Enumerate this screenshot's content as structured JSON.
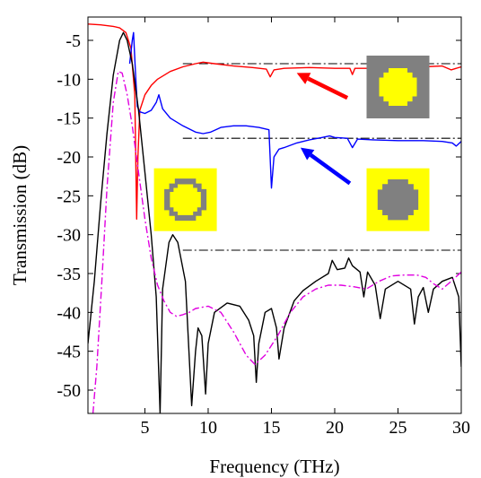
{
  "chart_data": {
    "type": "line",
    "title": "",
    "xlabel": "Frequency (THz)",
    "ylabel": "Transmission (dB)",
    "xlim": [
      0.5,
      30
    ],
    "ylim": [
      -53,
      -2
    ],
    "xticks": [
      5,
      10,
      15,
      20,
      25,
      30
    ],
    "xtick_labels": [
      "5",
      "10",
      "15",
      "20",
      "25",
      "30"
    ],
    "yticks": [
      -5,
      -10,
      -15,
      -20,
      -25,
      -30,
      -35,
      -40,
      -45,
      -50
    ],
    "ytick_labels": [
      "-5",
      "-10",
      "-15",
      "-20",
      "-25",
      "-30",
      "-35",
      "-40",
      "-45",
      "-50"
    ],
    "grid": false,
    "legend": "none",
    "series": [
      {
        "color": "#ff0000",
        "style": "solid",
        "points": [
          [
            0.5,
            -2.9
          ],
          [
            1.5,
            -3.0
          ],
          [
            2.5,
            -3.2
          ],
          [
            3.0,
            -3.4
          ],
          [
            3.5,
            -4.0
          ],
          [
            3.9,
            -6.0
          ],
          [
            4.2,
            -12.0
          ],
          [
            4.35,
            -28.0
          ],
          [
            4.45,
            -20.0
          ],
          [
            4.6,
            -14.0
          ],
          [
            5.0,
            -12.0
          ],
          [
            5.5,
            -10.8
          ],
          [
            6.0,
            -10.0
          ],
          [
            7.0,
            -9.0
          ],
          [
            8.0,
            -8.4
          ],
          [
            9.0,
            -8.0
          ],
          [
            9.6,
            -7.8
          ],
          [
            10.5,
            -8.0
          ],
          [
            12.0,
            -8.3
          ],
          [
            13.5,
            -8.5
          ],
          [
            14.6,
            -8.7
          ],
          [
            14.9,
            -9.7
          ],
          [
            15.2,
            -8.8
          ],
          [
            16.0,
            -8.6
          ],
          [
            18.0,
            -8.5
          ],
          [
            20.0,
            -8.6
          ],
          [
            21.2,
            -8.6
          ],
          [
            21.4,
            -9.4
          ],
          [
            21.6,
            -8.6
          ],
          [
            23.0,
            -8.6
          ],
          [
            25.0,
            -8.5
          ],
          [
            27.0,
            -8.4
          ],
          [
            28.5,
            -8.3
          ],
          [
            29.2,
            -8.8
          ],
          [
            30.0,
            -8.4
          ]
        ]
      },
      {
        "color": "#0000ff",
        "style": "solid",
        "points": [
          [
            3.8,
            -8.0
          ],
          [
            4.0,
            -5.0
          ],
          [
            4.1,
            -4.0
          ],
          [
            4.25,
            -9.0
          ],
          [
            4.4,
            -13.5
          ],
          [
            4.6,
            -14.2
          ],
          [
            5.0,
            -14.4
          ],
          [
            5.5,
            -14.0
          ],
          [
            5.9,
            -13.0
          ],
          [
            6.1,
            -12.0
          ],
          [
            6.4,
            -13.8
          ],
          [
            7.0,
            -15.0
          ],
          [
            8.0,
            -16.0
          ],
          [
            9.0,
            -16.8
          ],
          [
            9.6,
            -17.0
          ],
          [
            10.2,
            -16.8
          ],
          [
            11.0,
            -16.2
          ],
          [
            12.0,
            -16.0
          ],
          [
            13.0,
            -16.0
          ],
          [
            14.0,
            -16.2
          ],
          [
            14.8,
            -16.5
          ],
          [
            15.0,
            -24.0
          ],
          [
            15.2,
            -20.0
          ],
          [
            15.6,
            -19.0
          ],
          [
            16.0,
            -18.8
          ],
          [
            17.0,
            -18.2
          ],
          [
            18.0,
            -17.8
          ],
          [
            19.0,
            -17.5
          ],
          [
            19.6,
            -17.3
          ],
          [
            20.0,
            -17.5
          ],
          [
            21.0,
            -17.6
          ],
          [
            21.4,
            -18.8
          ],
          [
            21.8,
            -17.7
          ],
          [
            23.0,
            -17.8
          ],
          [
            25.0,
            -17.9
          ],
          [
            27.0,
            -17.9
          ],
          [
            28.5,
            -18.0
          ],
          [
            29.3,
            -18.2
          ],
          [
            29.6,
            -18.6
          ],
          [
            30.0,
            -18.0
          ]
        ]
      },
      {
        "color": "#000000",
        "style": "solid",
        "points": [
          [
            0.5,
            -44.0
          ],
          [
            1.0,
            -36.0
          ],
          [
            1.5,
            -26.0
          ],
          [
            2.0,
            -17.0
          ],
          [
            2.5,
            -9.5
          ],
          [
            3.0,
            -5.0
          ],
          [
            3.3,
            -4.0
          ],
          [
            3.6,
            -5.0
          ],
          [
            4.0,
            -8.0
          ],
          [
            4.5,
            -14.0
          ],
          [
            5.0,
            -22.0
          ],
          [
            5.5,
            -30.0
          ],
          [
            5.9,
            -38.0
          ],
          [
            6.2,
            -53.0
          ],
          [
            6.4,
            -37.0
          ],
          [
            6.9,
            -31.0
          ],
          [
            7.2,
            -30.0
          ],
          [
            7.6,
            -31.0
          ],
          [
            8.2,
            -36.0
          ],
          [
            8.7,
            -52.0
          ],
          [
            9.0,
            -45.0
          ],
          [
            9.2,
            -42.0
          ],
          [
            9.5,
            -43.0
          ],
          [
            9.8,
            -50.5
          ],
          [
            10.0,
            -44.0
          ],
          [
            10.5,
            -40.0
          ],
          [
            11.5,
            -38.8
          ],
          [
            12.5,
            -39.2
          ],
          [
            13.2,
            -41.0
          ],
          [
            13.6,
            -43.0
          ],
          [
            13.8,
            -49.0
          ],
          [
            14.0,
            -44.0
          ],
          [
            14.5,
            -40.0
          ],
          [
            15.0,
            -39.5
          ],
          [
            15.4,
            -42.0
          ],
          [
            15.6,
            -46.0
          ],
          [
            16.0,
            -42.0
          ],
          [
            16.8,
            -38.5
          ],
          [
            17.5,
            -37.2
          ],
          [
            18.5,
            -36.0
          ],
          [
            19.5,
            -35.0
          ],
          [
            19.8,
            -33.3
          ],
          [
            20.2,
            -34.5
          ],
          [
            20.8,
            -34.3
          ],
          [
            21.1,
            -33.0
          ],
          [
            21.4,
            -34.0
          ],
          [
            22.0,
            -34.8
          ],
          [
            22.3,
            -38.0
          ],
          [
            22.6,
            -34.8
          ],
          [
            23.2,
            -36.5
          ],
          [
            23.6,
            -40.8
          ],
          [
            24.0,
            -37.0
          ],
          [
            25.0,
            -36.0
          ],
          [
            26.0,
            -37.0
          ],
          [
            26.3,
            -41.5
          ],
          [
            26.6,
            -38.0
          ],
          [
            27.0,
            -36.8
          ],
          [
            27.4,
            -40.0
          ],
          [
            27.8,
            -37.0
          ],
          [
            28.5,
            -36.0
          ],
          [
            29.3,
            -35.5
          ],
          [
            29.8,
            -38.0
          ],
          [
            30.0,
            -47.0
          ]
        ]
      },
      {
        "color": "#e000e0",
        "style": "dashdot",
        "points": [
          [
            0.9,
            -53.0
          ],
          [
            1.2,
            -47.0
          ],
          [
            1.6,
            -36.0
          ],
          [
            2.0,
            -24.0
          ],
          [
            2.5,
            -13.0
          ],
          [
            2.9,
            -9.0
          ],
          [
            3.2,
            -9.2
          ],
          [
            3.6,
            -12.0
          ],
          [
            4.0,
            -16.0
          ],
          [
            4.5,
            -22.0
          ],
          [
            5.0,
            -28.0
          ],
          [
            5.5,
            -33.0
          ],
          [
            6.0,
            -36.5
          ],
          [
            6.5,
            -38.5
          ],
          [
            7.0,
            -40.0
          ],
          [
            7.5,
            -40.5
          ],
          [
            8.0,
            -40.3
          ],
          [
            8.5,
            -40.0
          ],
          [
            9.0,
            -39.5
          ],
          [
            10.0,
            -39.2
          ],
          [
            11.0,
            -40.0
          ],
          [
            12.0,
            -42.5
          ],
          [
            13.0,
            -45.5
          ],
          [
            13.7,
            -46.7
          ],
          [
            14.5,
            -45.5
          ],
          [
            15.5,
            -43.0
          ],
          [
            16.5,
            -40.0
          ],
          [
            17.5,
            -38.0
          ],
          [
            18.5,
            -37.0
          ],
          [
            19.5,
            -36.5
          ],
          [
            20.5,
            -36.5
          ],
          [
            21.5,
            -36.7
          ],
          [
            22.5,
            -37.0
          ],
          [
            23.5,
            -36.0
          ],
          [
            24.5,
            -35.3
          ],
          [
            25.5,
            -35.2
          ],
          [
            26.5,
            -35.2
          ],
          [
            27.2,
            -35.5
          ],
          [
            27.8,
            -36.3
          ],
          [
            28.5,
            -37.0
          ],
          [
            29.2,
            -36.0
          ],
          [
            30.0,
            -34.8
          ]
        ]
      }
    ],
    "reference_lines": [
      {
        "y": -8.0,
        "x_start": 8.0,
        "x_end": 30.0
      },
      {
        "y": -17.6,
        "x_start": 8.0,
        "x_end": 30.0
      },
      {
        "y": -32.0,
        "x_start": 8.0,
        "x_end": 30.0
      }
    ],
    "annotations": [
      {
        "kind": "arrow",
        "color": "#ff0000",
        "from": [
          21.0,
          -12.4
        ],
        "to": [
          17.0,
          -9.2
        ]
      },
      {
        "kind": "arrow",
        "color": "#0000ff",
        "from": [
          21.2,
          -23.4
        ],
        "to": [
          17.3,
          -18.8
        ]
      },
      {
        "kind": "arrow",
        "color": "#000000",
        "from": [
          8.0,
          -25.8
        ],
        "to": [
          6.5,
          -29.0
        ]
      }
    ],
    "insets": [
      {
        "name": "inset-top-right",
        "pattern": "yellow-center-on-gray",
        "x_center": 25.0,
        "y_center": -11.0
      },
      {
        "name": "inset-middle-right",
        "pattern": "gray-center-on-yellow",
        "x_center": 25.0,
        "y_center": -25.5
      },
      {
        "name": "inset-middle-left",
        "pattern": "gray-ring-on-yellow",
        "x_center": 8.2,
        "y_center": -25.5
      }
    ],
    "palette": {
      "yellow": "#ffff00",
      "gray": "#808080"
    }
  }
}
